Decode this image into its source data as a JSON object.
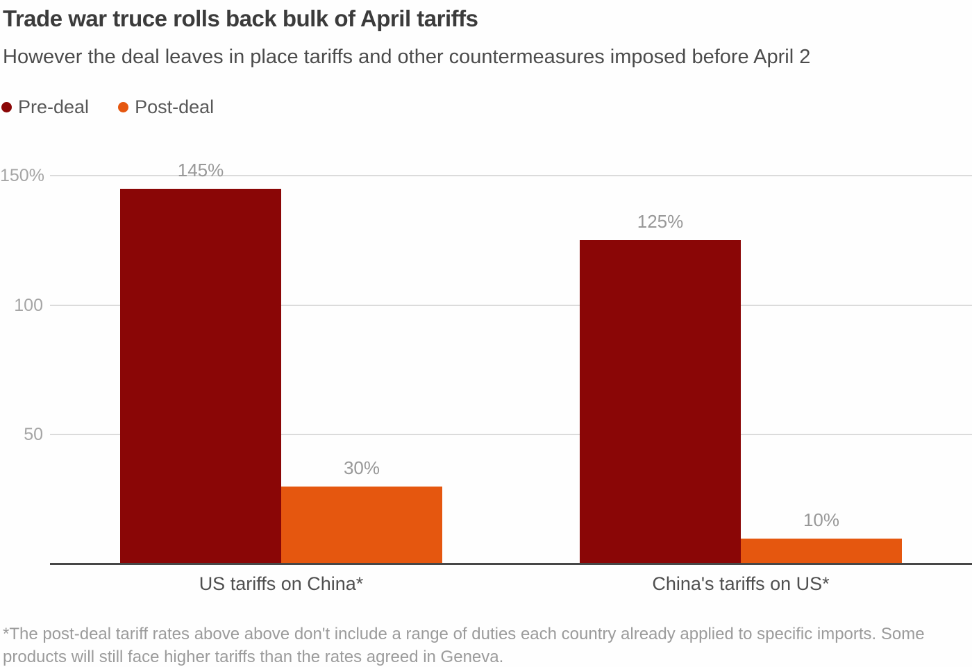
{
  "header": {
    "title": "Trade war truce rolls back bulk of April tariffs",
    "subtitle": "However the deal leaves in place tariffs and other countermeasures imposed before April 2"
  },
  "legend": {
    "items": [
      {
        "label": "Pre-deal",
        "color": "#8a0606"
      },
      {
        "label": "Post-deal",
        "color": "#e5570f"
      }
    ]
  },
  "chart_data": {
    "type": "bar",
    "title": "Trade war truce rolls back bulk of April tariffs",
    "subtitle": "However the deal leaves in place tariffs and other countermeasures imposed before April 2",
    "categories": [
      "US tariffs on China*",
      "China's tariffs on US*"
    ],
    "series": [
      {
        "name": "Pre-deal",
        "color": "#8a0606",
        "values": [
          145,
          125
        ],
        "labels": [
          "145%",
          "125%"
        ]
      },
      {
        "name": "Post-deal",
        "color": "#e5570f",
        "values": [
          30,
          10
        ],
        "labels": [
          "30%",
          "10%"
        ]
      }
    ],
    "y_ticks": [
      {
        "value": 150,
        "label": "150%"
      },
      {
        "value": 100,
        "label": "100"
      },
      {
        "value": 50,
        "label": "50"
      }
    ],
    "xlabel": "",
    "ylabel": "",
    "ylim": [
      0,
      162
    ],
    "grid": true,
    "legend_position": "top"
  },
  "footnote": "*The post-deal tariff rates above above don't include a range of duties each country already applied to specific imports. Some products will still face higher tariffs than the rates agreed in Geneva."
}
